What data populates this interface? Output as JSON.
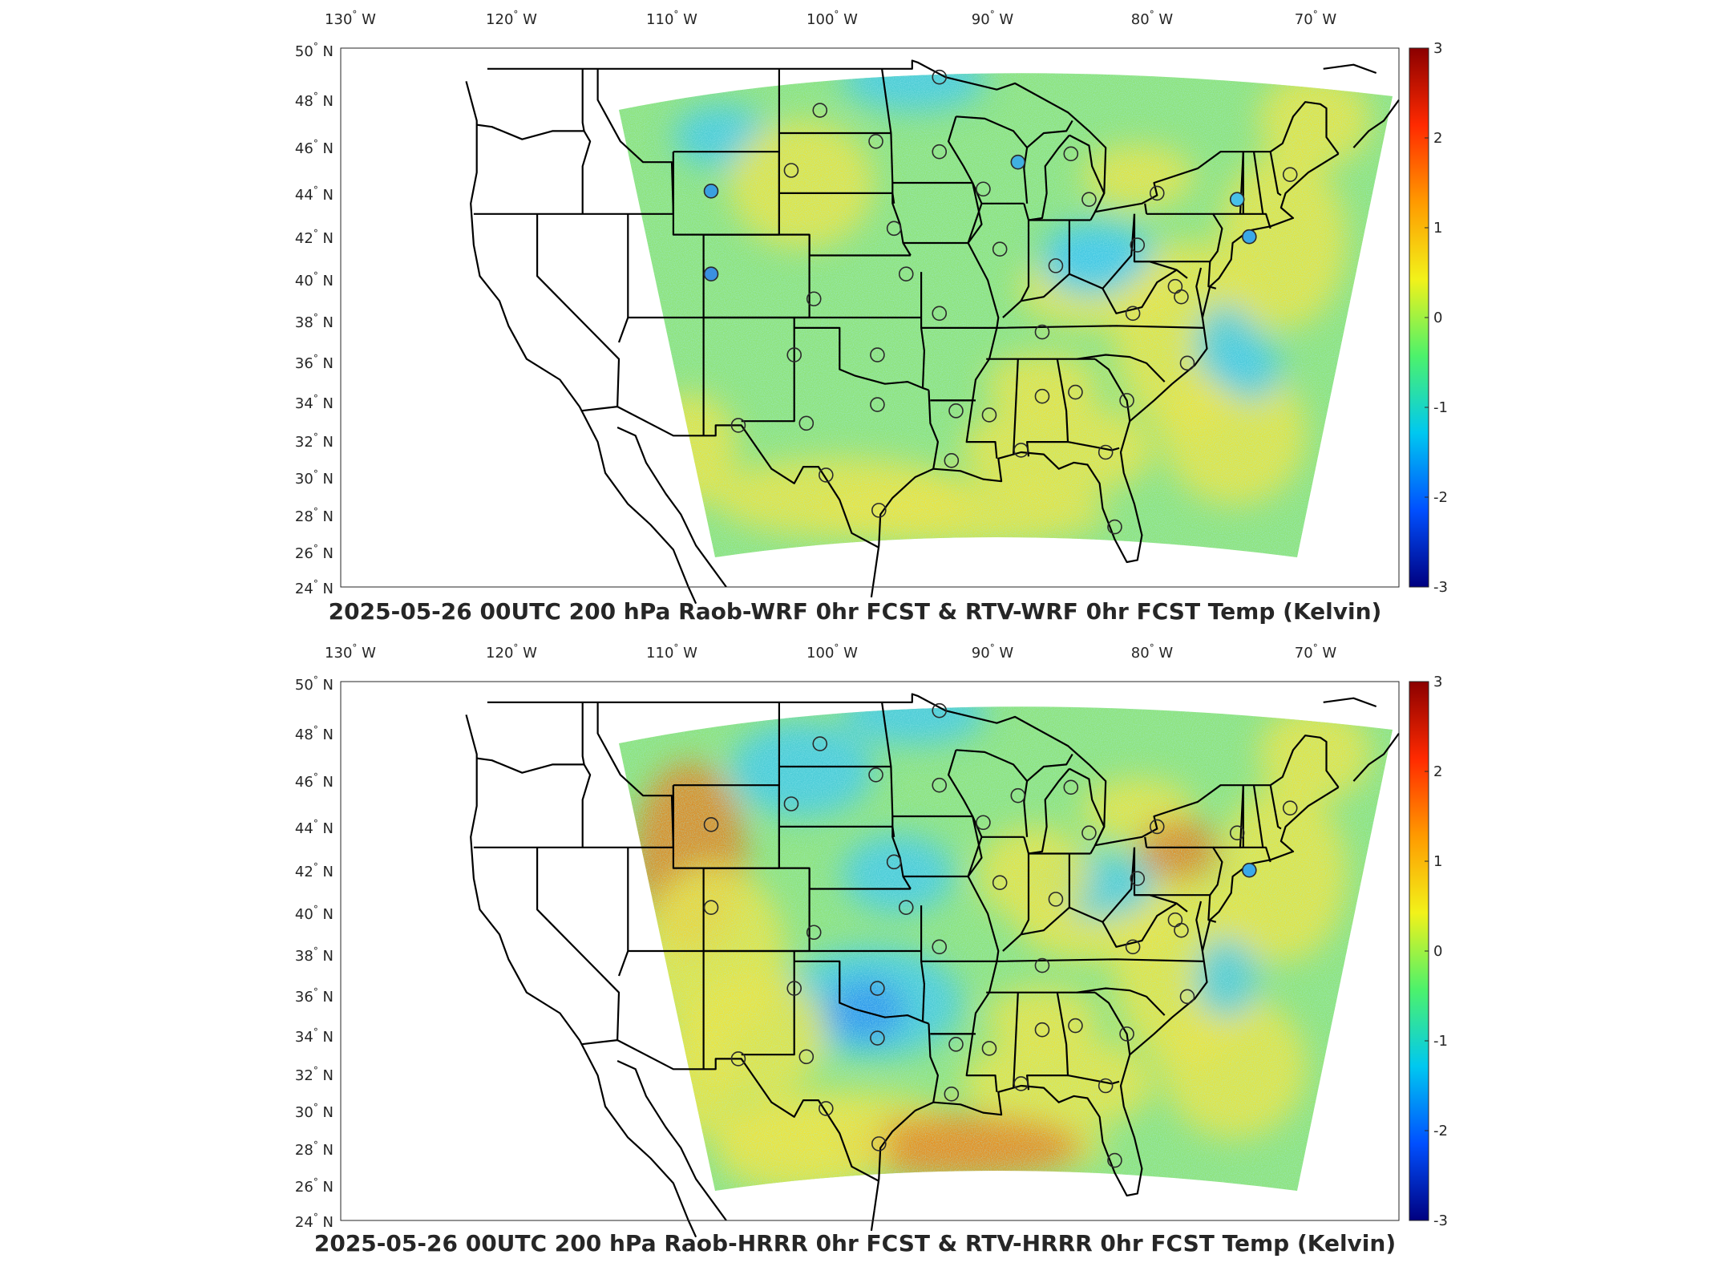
{
  "panels": [
    {
      "title": "2025-05-26 00UTC 200 hPa Raob-WRF 0hr FCST & RTV-WRF 0hr FCST Temp (Kelvin)",
      "variant": "wrf"
    },
    {
      "title": "2025-05-26 00UTC 200 hPa Raob-HRRR 0hr FCST & RTV-HRRR 0hr FCST Temp (Kelvin)",
      "variant": "hrrr"
    }
  ],
  "lon_labels": [
    "130",
    "120",
    "110",
    "100",
    "90",
    "80",
    "70"
  ],
  "lon_suffix": "W",
  "lat_labels": [
    "50",
    "48",
    "46",
    "44",
    "42",
    "40",
    "38",
    "36",
    "34",
    "32",
    "30",
    "28",
    "26",
    "24"
  ],
  "lat_suffix": "N",
  "degree_mark": "°",
  "colorbar": {
    "ticks": [
      "3",
      "2",
      "1",
      "0",
      "-1",
      "-2",
      "-3"
    ],
    "colors": [
      "#8b0000",
      "#ff2a00",
      "#ff9a00",
      "#f2f21a",
      "#4df26b",
      "#00c8f0",
      "#0050ff",
      "#000080"
    ]
  },
  "colors": {
    "field_base": "#8fe37a",
    "warm": "#f0e43a",
    "cool": "#40c8e8",
    "hot": "#e8801a",
    "border": "#000000"
  }
}
